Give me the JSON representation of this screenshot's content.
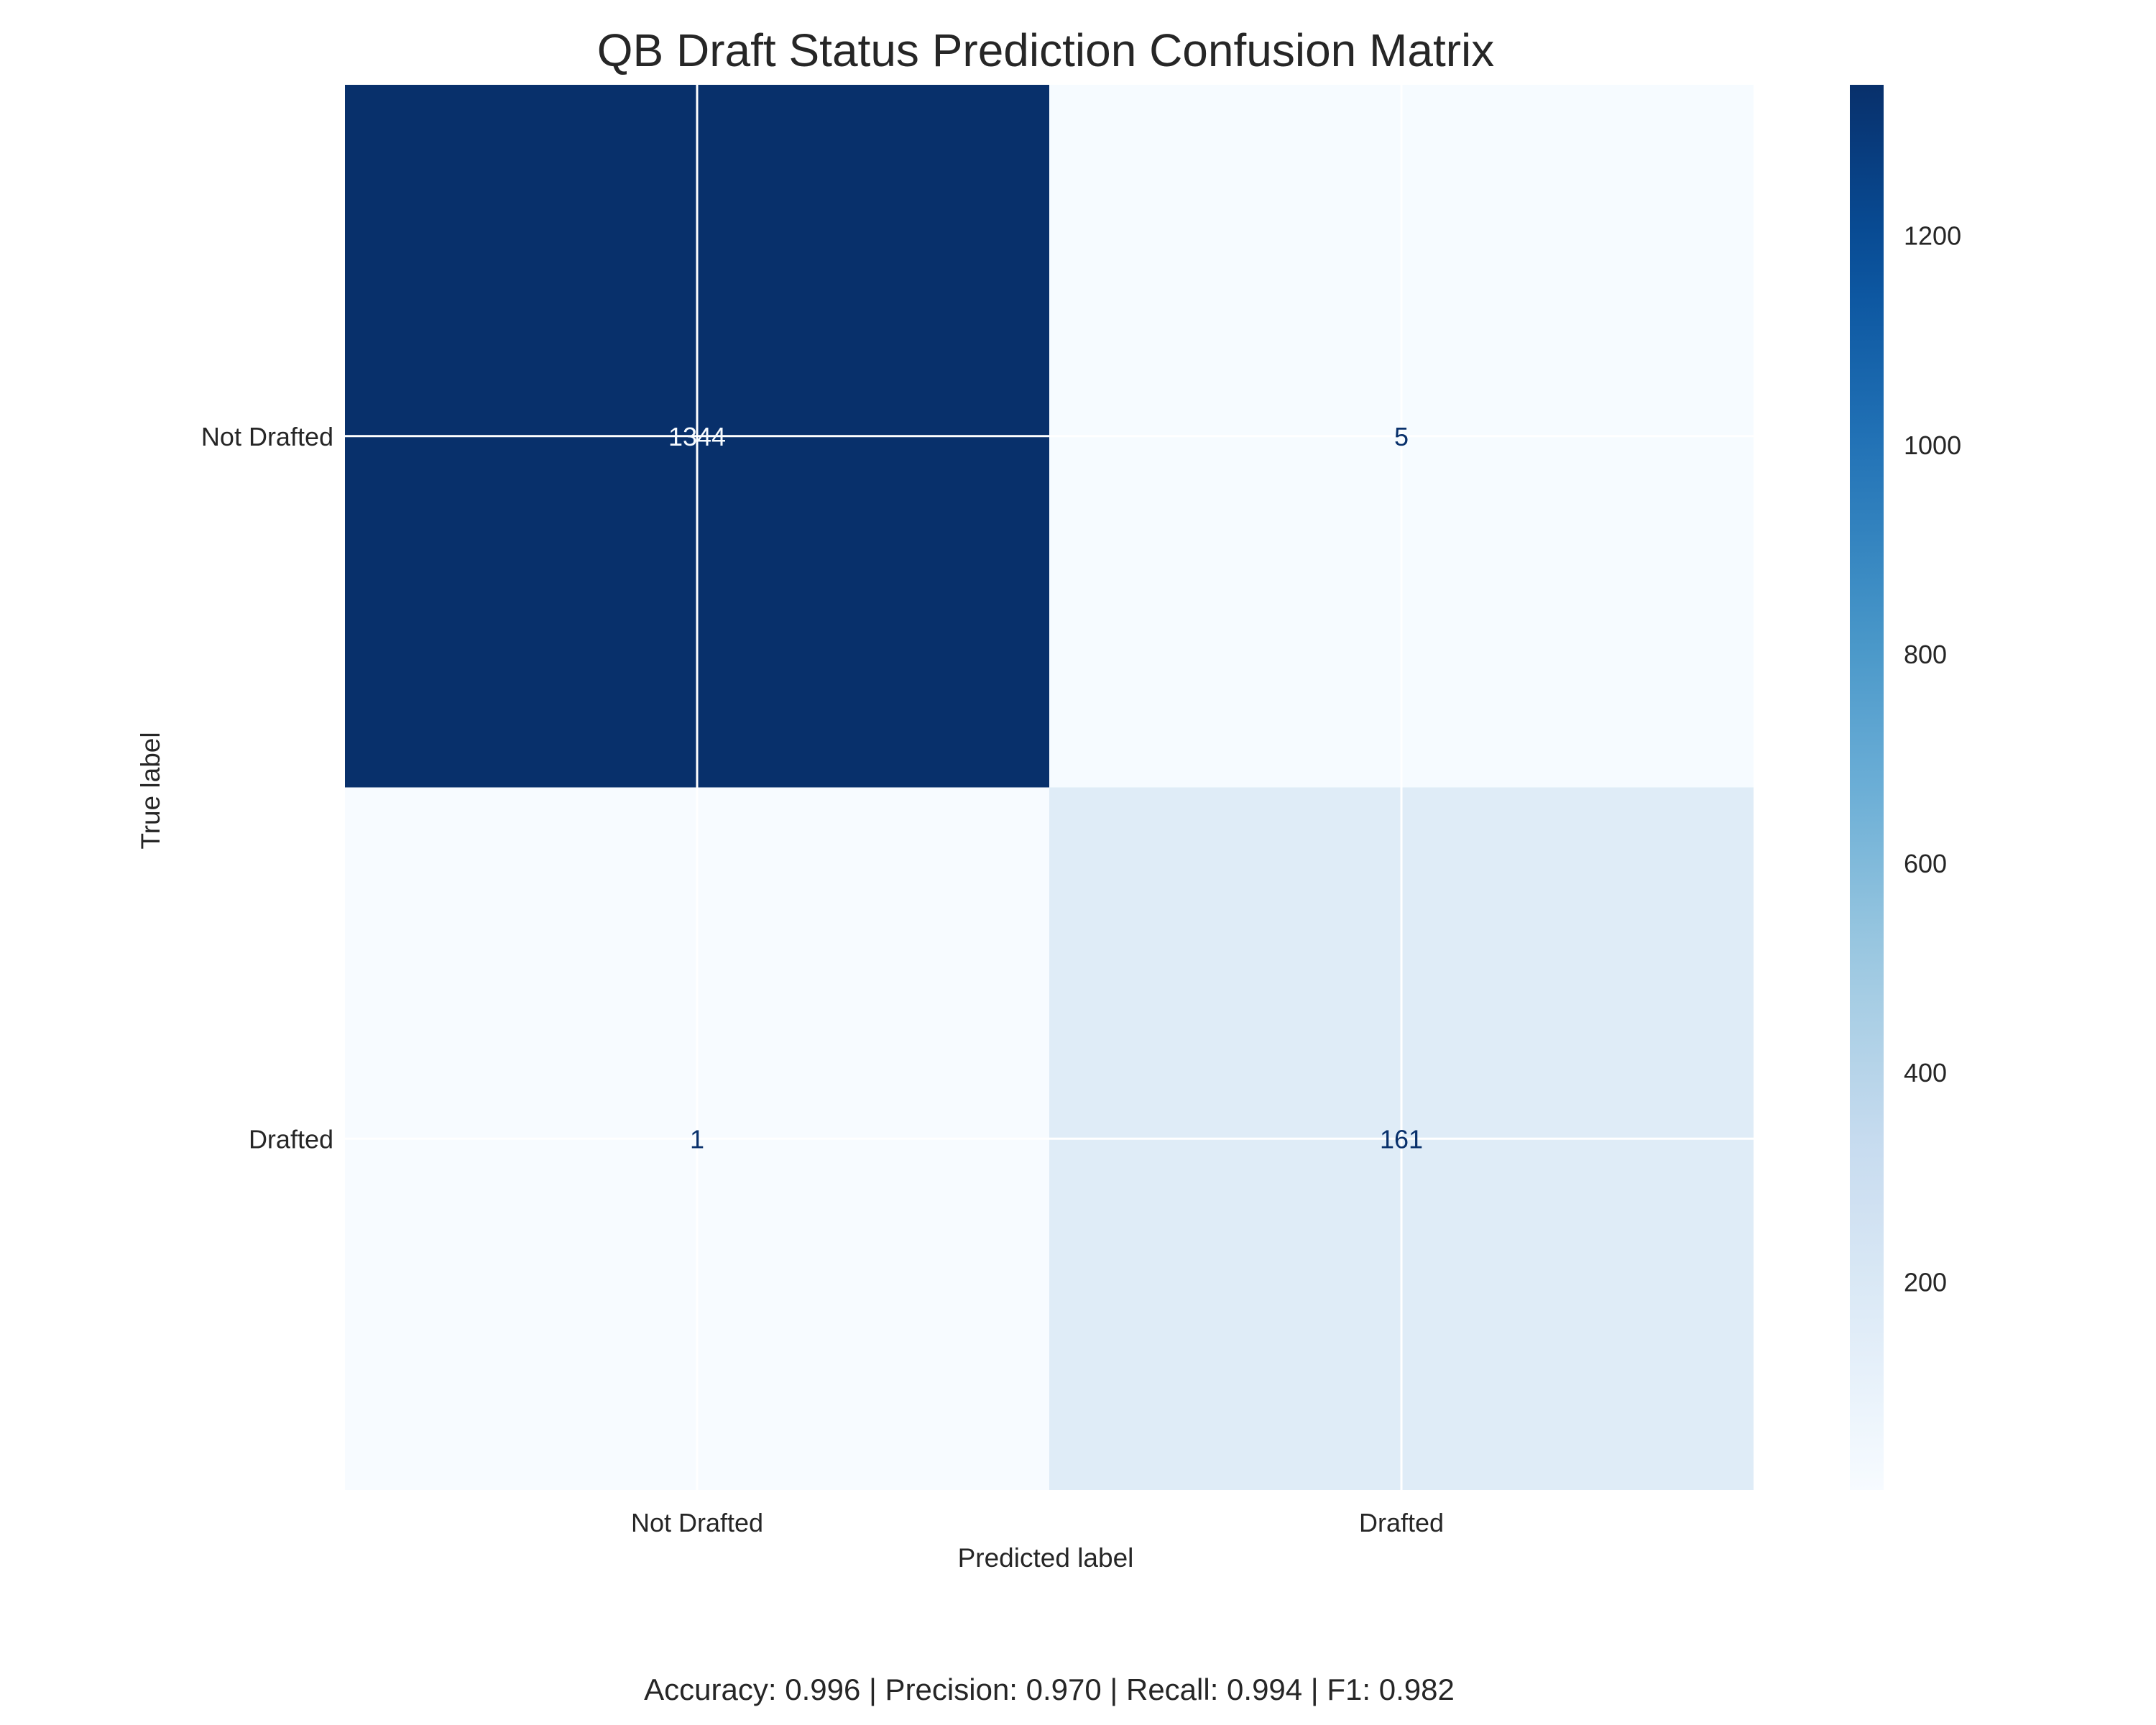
{
  "chart_data": {
    "type": "heatmap",
    "title": "QB Draft Status Prediction Confusion Matrix",
    "xlabel": "Predicted label",
    "ylabel": "True label",
    "x_categories": [
      "Not Drafted",
      "Drafted"
    ],
    "y_categories": [
      "Not Drafted",
      "Drafted"
    ],
    "matrix": [
      [
        1344,
        5
      ],
      [
        1,
        161
      ]
    ],
    "colormap": "Blues",
    "colorbar": {
      "min": 1,
      "max": 1344,
      "ticks": [
        200,
        400,
        600,
        800,
        1000,
        1200
      ]
    },
    "grid": true,
    "footer": "Accuracy: 0.996 | Precision: 0.970 | Recall: 0.994 | F1: 0.982"
  }
}
